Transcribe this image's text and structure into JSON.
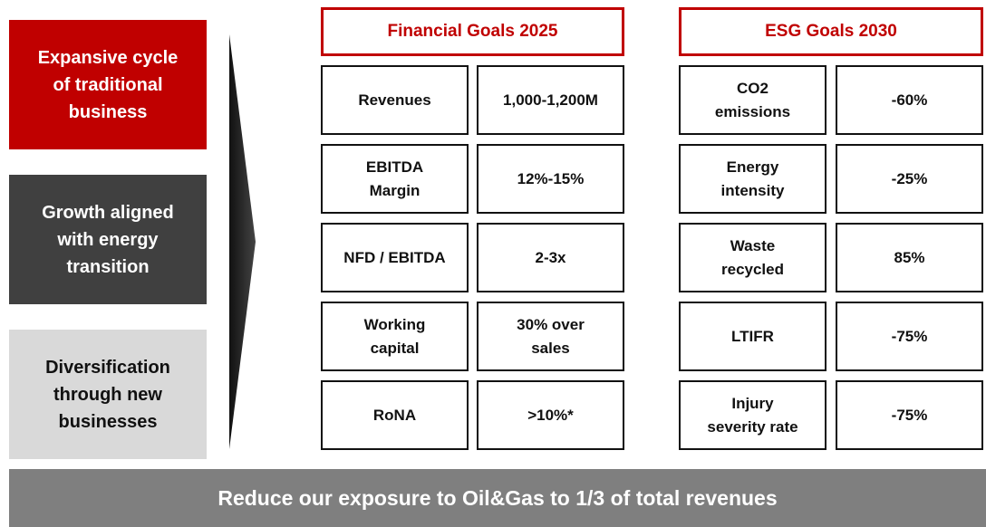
{
  "left_boxes": [
    "Expansive cycle\nof traditional\nbusiness",
    "Growth aligned\nwith energy\ntransition",
    "Diversification\nthrough new\nbusinesses"
  ],
  "financial": {
    "title": "Financial Goals 2025",
    "rows": [
      [
        "Revenues",
        "1,000-1,200M"
      ],
      [
        "EBITDA\nMargin",
        "12%-15%"
      ],
      [
        "NFD / EBITDA",
        "2-3x"
      ],
      [
        "Working\ncapital",
        "30% over\nsales"
      ],
      [
        "RoNA",
        ">10%*"
      ]
    ]
  },
  "esg": {
    "title": "ESG Goals 2030",
    "rows": [
      [
        "CO2\nemissions",
        "-60%"
      ],
      [
        "Energy\nintensity",
        "-25%"
      ],
      [
        "Waste\nrecycled",
        "85%"
      ],
      [
        "LTIFR",
        "-75%"
      ],
      [
        "Injury\nseverity rate",
        "-75%"
      ]
    ]
  },
  "footer": "Reduce our exposure to Oil&Gas to 1/3 of total revenues"
}
